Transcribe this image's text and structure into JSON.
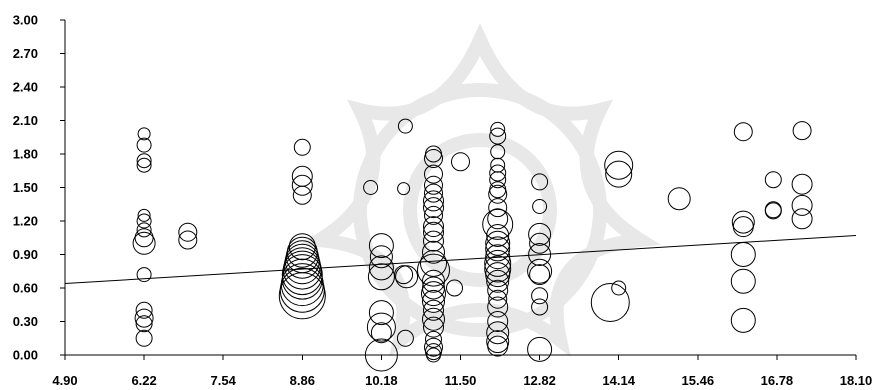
{
  "chart_data": {
    "type": "bubble",
    "title": "",
    "xlabel": "",
    "ylabel": "",
    "xlim": [
      4.9,
      18.1
    ],
    "ylim": [
      0.0,
      3.0
    ],
    "x_ticks": [
      "4.90",
      "6.22",
      "7.54",
      "8.86",
      "10.18",
      "11.50",
      "12.82",
      "14.14",
      "15.46",
      "16.78",
      "18.10"
    ],
    "y_ticks": [
      "0.00",
      "0.30",
      "0.60",
      "0.90",
      "1.20",
      "1.50",
      "1.80",
      "2.10",
      "2.40",
      "2.70",
      "3.00"
    ],
    "grid": false,
    "legend": "none",
    "trendline": {
      "x": [
        4.9,
        18.1
      ],
      "y": [
        0.64,
        1.07
      ]
    },
    "points": [
      {
        "x": 6.22,
        "y": 1.98,
        "s": 6
      },
      {
        "x": 6.22,
        "y": 1.88,
        "s": 7
      },
      {
        "x": 6.22,
        "y": 1.74,
        "s": 7
      },
      {
        "x": 6.22,
        "y": 1.7,
        "s": 7
      },
      {
        "x": 6.22,
        "y": 1.25,
        "s": 6
      },
      {
        "x": 6.22,
        "y": 1.2,
        "s": 7
      },
      {
        "x": 6.22,
        "y": 1.12,
        "s": 7
      },
      {
        "x": 6.22,
        "y": 1.05,
        "s": 9
      },
      {
        "x": 6.22,
        "y": 1.0,
        "s": 11
      },
      {
        "x": 6.22,
        "y": 0.72,
        "s": 7
      },
      {
        "x": 6.22,
        "y": 0.4,
        "s": 8
      },
      {
        "x": 6.22,
        "y": 0.33,
        "s": 9
      },
      {
        "x": 6.22,
        "y": 0.28,
        "s": 8
      },
      {
        "x": 6.22,
        "y": 0.15,
        "s": 8
      },
      {
        "x": 6.95,
        "y": 1.1,
        "s": 9
      },
      {
        "x": 6.95,
        "y": 1.03,
        "s": 9
      },
      {
        "x": 8.86,
        "y": 1.86,
        "s": 8
      },
      {
        "x": 8.86,
        "y": 1.6,
        "s": 10
      },
      {
        "x": 8.86,
        "y": 1.52,
        "s": 10
      },
      {
        "x": 8.86,
        "y": 1.43,
        "s": 9
      },
      {
        "x": 8.86,
        "y": 0.97,
        "s": 13
      },
      {
        "x": 8.86,
        "y": 0.92,
        "s": 15
      },
      {
        "x": 8.86,
        "y": 0.88,
        "s": 16
      },
      {
        "x": 8.86,
        "y": 0.84,
        "s": 17
      },
      {
        "x": 8.86,
        "y": 0.8,
        "s": 18
      },
      {
        "x": 8.86,
        "y": 0.76,
        "s": 19
      },
      {
        "x": 8.86,
        "y": 0.72,
        "s": 20
      },
      {
        "x": 8.86,
        "y": 0.68,
        "s": 20
      },
      {
        "x": 8.86,
        "y": 0.63,
        "s": 21
      },
      {
        "x": 8.86,
        "y": 0.58,
        "s": 22
      },
      {
        "x": 8.86,
        "y": 0.53,
        "s": 23
      },
      {
        "x": 10.0,
        "y": 1.5,
        "s": 7
      },
      {
        "x": 10.18,
        "y": 0.98,
        "s": 12
      },
      {
        "x": 10.18,
        "y": 0.88,
        "s": 11
      },
      {
        "x": 10.18,
        "y": 0.78,
        "s": 12
      },
      {
        "x": 10.18,
        "y": 0.7,
        "s": 13
      },
      {
        "x": 10.18,
        "y": 0.38,
        "s": 12
      },
      {
        "x": 10.18,
        "y": 0.25,
        "s": 14
      },
      {
        "x": 10.18,
        "y": 0.2,
        "s": 10
      },
      {
        "x": 10.18,
        "y": 0.0,
        "s": 16
      },
      {
        "x": 10.55,
        "y": 1.49,
        "s": 6
      },
      {
        "x": 10.58,
        "y": 2.05,
        "s": 7
      },
      {
        "x": 10.55,
        "y": 0.72,
        "s": 9
      },
      {
        "x": 10.6,
        "y": 0.7,
        "s": 11
      },
      {
        "x": 10.58,
        "y": 0.15,
        "s": 8
      },
      {
        "x": 11.05,
        "y": 1.8,
        "s": 8
      },
      {
        "x": 11.05,
        "y": 1.76,
        "s": 9
      },
      {
        "x": 11.05,
        "y": 1.62,
        "s": 9
      },
      {
        "x": 11.05,
        "y": 1.52,
        "s": 9
      },
      {
        "x": 11.05,
        "y": 1.45,
        "s": 9
      },
      {
        "x": 11.05,
        "y": 1.38,
        "s": 10
      },
      {
        "x": 11.05,
        "y": 1.32,
        "s": 10
      },
      {
        "x": 11.05,
        "y": 1.25,
        "s": 9
      },
      {
        "x": 11.05,
        "y": 1.15,
        "s": 10
      },
      {
        "x": 11.05,
        "y": 1.1,
        "s": 10
      },
      {
        "x": 11.05,
        "y": 1.02,
        "s": 10
      },
      {
        "x": 11.05,
        "y": 0.92,
        "s": 11
      },
      {
        "x": 11.05,
        "y": 0.82,
        "s": 13
      },
      {
        "x": 11.05,
        "y": 0.76,
        "s": 16
      },
      {
        "x": 11.05,
        "y": 0.66,
        "s": 11
      },
      {
        "x": 11.05,
        "y": 0.6,
        "s": 11
      },
      {
        "x": 11.05,
        "y": 0.55,
        "s": 12
      },
      {
        "x": 11.05,
        "y": 0.48,
        "s": 11
      },
      {
        "x": 11.05,
        "y": 0.4,
        "s": 10
      },
      {
        "x": 11.05,
        "y": 0.32,
        "s": 11
      },
      {
        "x": 11.05,
        "y": 0.25,
        "s": 10
      },
      {
        "x": 11.05,
        "y": 0.14,
        "s": 8
      },
      {
        "x": 11.05,
        "y": 0.07,
        "s": 9
      },
      {
        "x": 11.05,
        "y": 0.03,
        "s": 8
      },
      {
        "x": 11.05,
        "y": 0.0,
        "s": 7
      },
      {
        "x": 11.5,
        "y": 1.73,
        "s": 9
      },
      {
        "x": 11.4,
        "y": 0.6,
        "s": 8
      },
      {
        "x": 12.12,
        "y": 2.02,
        "s": 7
      },
      {
        "x": 12.12,
        "y": 1.96,
        "s": 8
      },
      {
        "x": 12.12,
        "y": 1.82,
        "s": 7
      },
      {
        "x": 12.12,
        "y": 1.7,
        "s": 7
      },
      {
        "x": 12.12,
        "y": 1.63,
        "s": 8
      },
      {
        "x": 12.12,
        "y": 1.57,
        "s": 8
      },
      {
        "x": 12.12,
        "y": 1.48,
        "s": 8
      },
      {
        "x": 12.12,
        "y": 1.44,
        "s": 9
      },
      {
        "x": 12.12,
        "y": 1.32,
        "s": 9
      },
      {
        "x": 12.12,
        "y": 1.22,
        "s": 10
      },
      {
        "x": 12.12,
        "y": 1.17,
        "s": 15
      },
      {
        "x": 12.12,
        "y": 1.07,
        "s": 11
      },
      {
        "x": 12.12,
        "y": 1.0,
        "s": 12
      },
      {
        "x": 12.12,
        "y": 0.95,
        "s": 12
      },
      {
        "x": 12.12,
        "y": 0.88,
        "s": 12
      },
      {
        "x": 12.12,
        "y": 0.82,
        "s": 13
      },
      {
        "x": 12.12,
        "y": 0.77,
        "s": 13
      },
      {
        "x": 12.12,
        "y": 0.72,
        "s": 12
      },
      {
        "x": 12.12,
        "y": 0.66,
        "s": 11
      },
      {
        "x": 12.12,
        "y": 0.58,
        "s": 10
      },
      {
        "x": 12.12,
        "y": 0.5,
        "s": 9
      },
      {
        "x": 12.12,
        "y": 0.43,
        "s": 10
      },
      {
        "x": 12.12,
        "y": 0.3,
        "s": 10
      },
      {
        "x": 12.12,
        "y": 0.2,
        "s": 11
      },
      {
        "x": 12.12,
        "y": 0.12,
        "s": 11
      },
      {
        "x": 12.12,
        "y": 0.08,
        "s": 10
      },
      {
        "x": 12.82,
        "y": 1.55,
        "s": 8
      },
      {
        "x": 12.82,
        "y": 1.33,
        "s": 7
      },
      {
        "x": 12.82,
        "y": 1.08,
        "s": 11
      },
      {
        "x": 12.82,
        "y": 1.0,
        "s": 10
      },
      {
        "x": 12.82,
        "y": 0.9,
        "s": 11
      },
      {
        "x": 12.82,
        "y": 0.75,
        "s": 12
      },
      {
        "x": 12.82,
        "y": 0.72,
        "s": 10
      },
      {
        "x": 12.82,
        "y": 0.53,
        "s": 8
      },
      {
        "x": 12.82,
        "y": 0.43,
        "s": 8
      },
      {
        "x": 12.82,
        "y": 0.05,
        "s": 12
      },
      {
        "x": 14.14,
        "y": 1.7,
        "s": 14
      },
      {
        "x": 14.14,
        "y": 1.62,
        "s": 13
      },
      {
        "x": 14.14,
        "y": 0.6,
        "s": 7
      },
      {
        "x": 14.0,
        "y": 0.47,
        "s": 19
      },
      {
        "x": 15.15,
        "y": 1.4,
        "s": 11
      },
      {
        "x": 16.22,
        "y": 2.0,
        "s": 9
      },
      {
        "x": 16.22,
        "y": 1.19,
        "s": 11
      },
      {
        "x": 16.22,
        "y": 1.15,
        "s": 10
      },
      {
        "x": 16.22,
        "y": 0.9,
        "s": 12
      },
      {
        "x": 16.22,
        "y": 0.66,
        "s": 12
      },
      {
        "x": 16.22,
        "y": 0.31,
        "s": 12
      },
      {
        "x": 16.72,
        "y": 1.57,
        "s": 8
      },
      {
        "x": 16.72,
        "y": 1.3,
        "s": 8
      },
      {
        "x": 16.72,
        "y": 1.29,
        "s": 8
      },
      {
        "x": 17.2,
        "y": 2.01,
        "s": 9
      },
      {
        "x": 17.2,
        "y": 1.53,
        "s": 10
      },
      {
        "x": 17.2,
        "y": 1.34,
        "s": 10
      },
      {
        "x": 17.2,
        "y": 1.22,
        "s": 10
      }
    ]
  }
}
